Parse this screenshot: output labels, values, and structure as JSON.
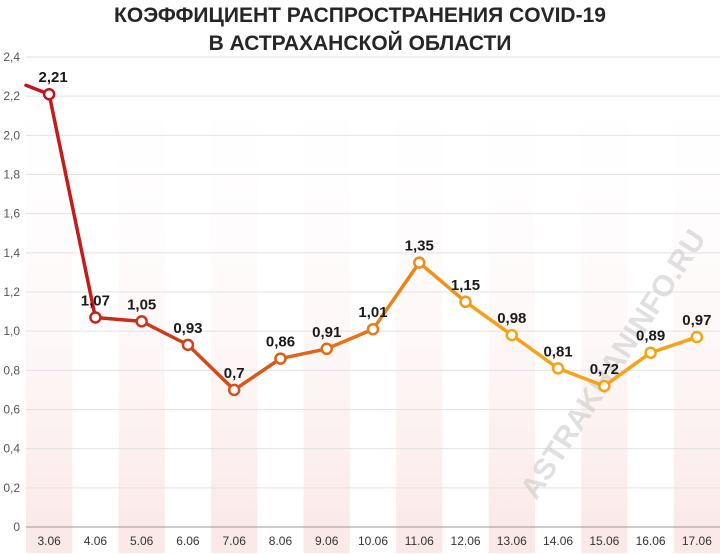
{
  "title_line1": "КОЭФФИЦИЕНТ РАСПРОСТРАНЕНИЯ COVID-19",
  "title_line2": "В АСТРАХАНСКОЙ ОБЛАСТИ",
  "watermark": "ASTRAKHANINFO.RU",
  "colors": {
    "line_start": "#c0151b",
    "line_end": "#f7a218",
    "band": "#fbe9e9",
    "label": "#1a1a1a"
  },
  "chart_data": {
    "type": "line",
    "categories": [
      "3.06",
      "4.06",
      "5.06",
      "6.06",
      "7.06",
      "8.06",
      "9.06",
      "10.06",
      "11.06",
      "12.06",
      "13.06",
      "14.06",
      "15.06",
      "16.06",
      "17.06"
    ],
    "values": [
      2.21,
      1.07,
      1.05,
      0.93,
      0.7,
      0.86,
      0.91,
      1.01,
      1.35,
      1.15,
      0.98,
      0.81,
      0.72,
      0.89,
      0.97
    ],
    "value_labels": [
      "2,21",
      "1,07",
      "1,05",
      "0,93",
      "0,7",
      "0,86",
      "0,91",
      "1,01",
      "1,35",
      "1,15",
      "0,98",
      "0,81",
      "0,72",
      "0,89",
      "0,97"
    ],
    "y_ticks": [
      0,
      0.2,
      0.4,
      0.6,
      0.8,
      1.0,
      1.2,
      1.4,
      1.6,
      1.8,
      2.0,
      2.2,
      2.4
    ],
    "y_tick_labels": [
      "0",
      "0,2",
      "0,4",
      "0,6",
      "0,8",
      "1,0",
      "1,2",
      "1,4",
      "1,6",
      "1,8",
      "2,0",
      "2,2",
      "2,4"
    ],
    "ylim": [
      0,
      2.4
    ],
    "grid": true,
    "legend": "none"
  }
}
